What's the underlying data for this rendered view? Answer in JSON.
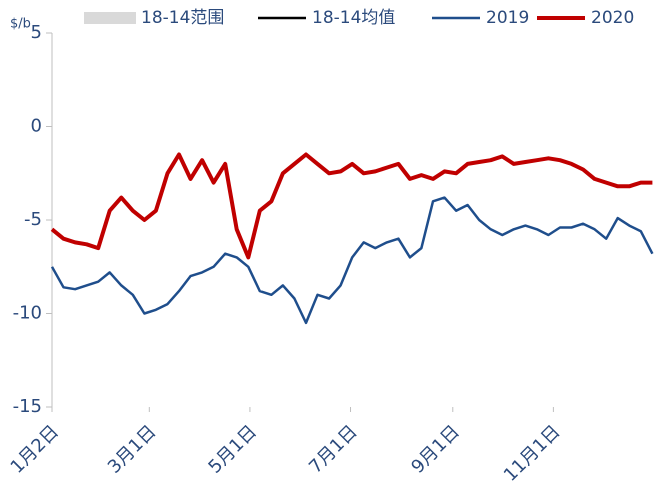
{
  "chart_data": {
    "type": "line",
    "y_label": "$/b",
    "xlim": [
      0,
      365
    ],
    "xticks": [
      {
        "value": 0,
        "label": "1月2日"
      },
      {
        "value": 59,
        "label": "3月1日"
      },
      {
        "value": 120,
        "label": "5月1日"
      },
      {
        "value": 181,
        "label": "7月1日"
      },
      {
        "value": 243,
        "label": "9月1日"
      },
      {
        "value": 304,
        "label": "11月1日"
      }
    ],
    "ylim": [
      -15,
      5
    ],
    "yticks": [
      -15,
      -10,
      -5,
      0,
      5
    ],
    "grid": false,
    "legend": "top",
    "x": [
      0,
      7,
      14,
      21,
      28,
      35,
      42,
      49,
      56,
      63,
      70,
      77,
      84,
      91,
      98,
      105,
      112,
      119,
      126,
      133,
      140,
      147,
      154,
      161,
      168,
      175,
      182,
      189,
      196,
      203,
      210,
      217,
      224,
      231,
      238,
      245,
      252,
      259,
      266,
      273,
      280,
      287,
      294,
      301,
      308,
      315,
      322,
      329,
      336,
      343,
      350,
      357,
      364
    ],
    "series": [
      {
        "name": "18-14范围",
        "color": "#d9d9d9",
        "style": "area"
      },
      {
        "name": "18-14均值",
        "color": "#000000",
        "style": "line"
      },
      {
        "name": "2019",
        "color": "#1f4e8c",
        "style": "line",
        "values": [
          -7.5,
          -8.6,
          -8.7,
          -8.5,
          -8.3,
          -7.8,
          -8.5,
          -9.0,
          -10.0,
          -9.8,
          -9.5,
          -8.8,
          -8.0,
          -7.8,
          -7.5,
          -6.8,
          -7.0,
          -7.5,
          -8.8,
          -9.0,
          -8.5,
          -9.2,
          -10.5,
          -9.0,
          -9.2,
          -8.5,
          -7.0,
          -6.2,
          -6.5,
          -6.2,
          -6.0,
          -7.0,
          -6.5,
          -4.0,
          -3.8,
          -4.5,
          -4.2,
          -5.0,
          -5.5,
          -5.8,
          -5.5,
          -5.3,
          -5.5,
          -5.8,
          -5.4,
          -5.4,
          -5.2,
          -5.5,
          -6.0,
          -4.9,
          -5.3,
          -5.6,
          -6.8
        ]
      },
      {
        "name": "2020",
        "color": "#c00000",
        "style": "line",
        "values": [
          -5.5,
          -6.0,
          -6.2,
          -6.3,
          -6.5,
          -4.5,
          -3.8,
          -4.5,
          -5.0,
          -4.5,
          -2.5,
          -1.5,
          -2.8,
          -1.8,
          -3.0,
          -2.0,
          -5.5,
          -7.0,
          -4.5,
          -4.0,
          -2.5,
          -2.0,
          -1.5,
          -2.0,
          -2.5,
          -2.4,
          -2.0,
          -2.5,
          -2.4,
          -2.2,
          -2.0,
          -2.8,
          -2.6,
          -2.8,
          -2.4,
          -2.5,
          -2.0,
          -1.9,
          -1.8,
          -1.6,
          -2.0,
          -1.9,
          -1.8,
          -1.7,
          -1.8,
          -2.0,
          -2.3,
          -2.8,
          -3.0,
          -3.2,
          -3.2,
          -3.0,
          -3.0
        ]
      }
    ]
  }
}
